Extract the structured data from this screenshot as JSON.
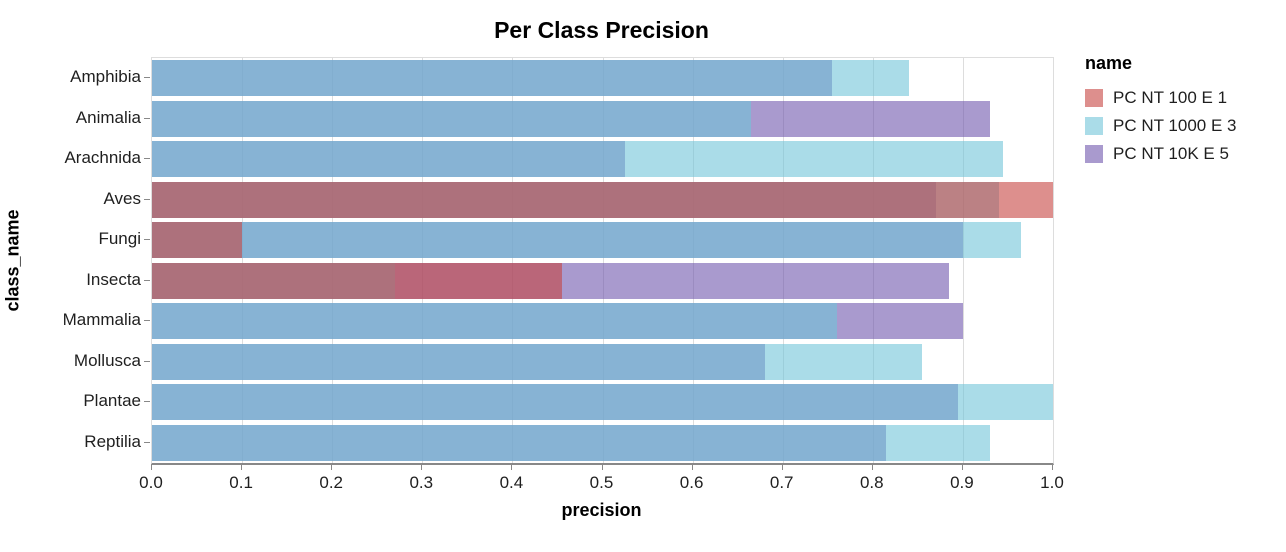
{
  "chart_data": {
    "type": "bar",
    "orientation": "horizontal",
    "title": "Per Class Precision",
    "xlabel": "precision",
    "ylabel": "class_name",
    "xlim": [
      0.0,
      1.0
    ],
    "xticks": [
      0.0,
      0.1,
      0.2,
      0.3,
      0.4,
      0.5,
      0.6,
      0.7,
      0.8,
      0.9,
      1.0
    ],
    "grid": true,
    "legend_title": "name",
    "legend_position": "right",
    "bars_overlap": true,
    "bar_opacity": 0.6,
    "categories": [
      "Amphibia",
      "Animalia",
      "Arachnida",
      "Aves",
      "Fungi",
      "Insecta",
      "Mammalia",
      "Mollusca",
      "Plantae",
      "Reptilia"
    ],
    "series": [
      {
        "name": "PC NT 100 E 1",
        "color": "#c64441",
        "display_color": "#dd8f8d",
        "values": [
          null,
          null,
          null,
          1.0,
          0.1,
          0.455,
          null,
          null,
          null,
          null
        ]
      },
      {
        "name": "PC NT 1000 E 3",
        "color": "#71c5d9",
        "display_color": "#aadce8",
        "values": [
          0.84,
          0.665,
          0.945,
          0.94,
          0.965,
          0.27,
          0.76,
          0.855,
          1.0,
          0.93
        ]
      },
      {
        "name": "PC NT 10K E 5",
        "color": "#7057ad",
        "display_color": "#a99ace",
        "values": [
          0.755,
          0.93,
          0.525,
          0.87,
          0.9,
          0.885,
          0.9,
          0.68,
          0.895,
          0.815
        ]
      }
    ]
  }
}
